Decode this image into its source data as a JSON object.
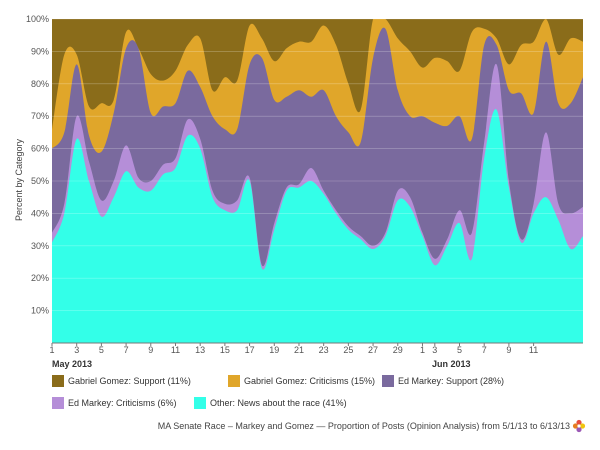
{
  "chart_data": {
    "type": "area",
    "stacked": "percent",
    "ylabel": "Percent by Category",
    "ylim": [
      0,
      100
    ],
    "y_ticks": [
      "10%",
      "20%",
      "30%",
      "40%",
      "50%",
      "60%",
      "70%",
      "80%",
      "90%",
      "100%"
    ],
    "x_tick_labels": [
      "1",
      "3",
      "5",
      "7",
      "9",
      "11",
      "13",
      "15",
      "17",
      "19",
      "21",
      "23",
      "25",
      "27",
      "29",
      "1",
      "3",
      "5",
      "7",
      "9",
      "11"
    ],
    "x_month_labels": [
      "May 2013",
      "Jun 2013"
    ],
    "x": [
      "5/1",
      "5/2",
      "5/3",
      "5/4",
      "5/5",
      "5/6",
      "5/7",
      "5/8",
      "5/9",
      "5/10",
      "5/11",
      "5/12",
      "5/13",
      "5/14",
      "5/15",
      "5/16",
      "5/17",
      "5/18",
      "5/19",
      "5/20",
      "5/21",
      "5/22",
      "5/23",
      "5/24",
      "5/25",
      "5/26",
      "5/27",
      "5/28",
      "5/29",
      "5/30",
      "5/31",
      "6/1",
      "6/2",
      "6/3",
      "6/4",
      "6/5",
      "6/6",
      "6/7",
      "6/8",
      "6/9",
      "6/10",
      "6/11",
      "6/12",
      "6/13"
    ],
    "series": [
      {
        "name": "Other: News about the race",
        "legend_pct": "(41%)",
        "color": "#33ffe8",
        "values": [
          31,
          40,
          63,
          50,
          39,
          45,
          53,
          48,
          47,
          52,
          54,
          64,
          60,
          45,
          41,
          41,
          50,
          23,
          35,
          47,
          48,
          50,
          46,
          40,
          35,
          32,
          29,
          33,
          44,
          42,
          33,
          24,
          30,
          37,
          26,
          57,
          72,
          48,
          31,
          40,
          45,
          38,
          29,
          33
        ]
      },
      {
        "name": "Ed Markey: Criticisms",
        "legend_pct": "(6%)",
        "color": "#b58ed8",
        "values": [
          3,
          3,
          7,
          6,
          5,
          5,
          8,
          3,
          3,
          3,
          3,
          5,
          3,
          2,
          2,
          3,
          1,
          1,
          2,
          1,
          1,
          4,
          1,
          1,
          1,
          1,
          1,
          1,
          3,
          3,
          1,
          2,
          2,
          4,
          8,
          5,
          14,
          2,
          1,
          3,
          20,
          5,
          11,
          9
        ]
      },
      {
        "name": "Ed Markey: Support",
        "legend_pct": "(28%)",
        "color": "#7a6a9e",
        "values": [
          26,
          22,
          16,
          8,
          15,
          21,
          30,
          40,
          21,
          18,
          17,
          15,
          16,
          23,
          23,
          22,
          35,
          64,
          38,
          28,
          29,
          22,
          31,
          29,
          29,
          29,
          58,
          63,
          31,
          25,
          36,
          42,
          35,
          29,
          29,
          30,
          6,
          28,
          45,
          28,
          28,
          31,
          34,
          40
        ]
      },
      {
        "name": "Gabriel Gomez: Criticisms",
        "legend_pct": "(15%)",
        "color": "#e0a62a",
        "values": [
          6,
          24,
          3,
          9,
          15,
          4,
          5,
          0,
          12,
          8,
          10,
          8,
          15,
          8,
          16,
          15,
          12,
          6,
          12,
          15,
          15,
          17,
          20,
          22,
          15,
          10,
          12,
          3,
          16,
          20,
          15,
          20,
          20,
          14,
          33,
          5,
          2,
          8,
          15,
          22,
          7,
          15,
          20,
          11
        ]
      },
      {
        "name": "Gabriel Gomez: Support",
        "legend_pct": "(11%)",
        "color": "#8a6c1a",
        "values": [
          34,
          11,
          11,
          27,
          26,
          25,
          4,
          9,
          17,
          19,
          16,
          8,
          6,
          22,
          18,
          19,
          2,
          6,
          13,
          9,
          7,
          7,
          2,
          8,
          20,
          28,
          0,
          0,
          6,
          10,
          15,
          12,
          13,
          16,
          4,
          3,
          6,
          14,
          8,
          7,
          0,
          11,
          6,
          7
        ]
      }
    ],
    "legend_order": [
      4,
      3,
      2,
      1,
      0
    ],
    "legend_placement": "bottom",
    "caption": "MA Senate Race – Markey and Gomez — Proportion of Posts (Opinion Analysis) from 5/1/13 to 6/13/13"
  }
}
